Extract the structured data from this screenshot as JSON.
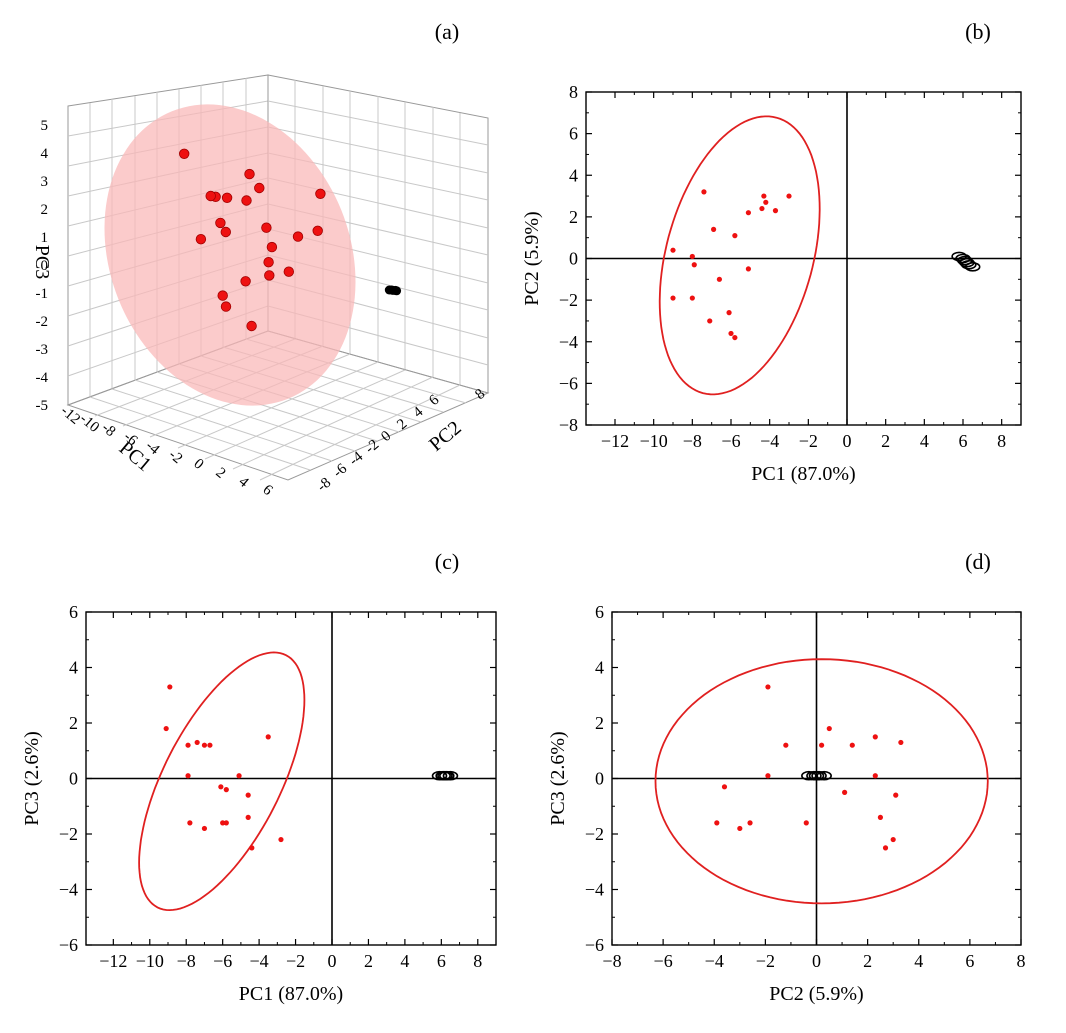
{
  "colors": {
    "group1_points": "#ee1111",
    "group1_ellipse": "#e02020",
    "group1_fill": "#f9b7b7",
    "group2_points": "#000000",
    "axis": "#000000",
    "grid3d": "#c8c8c8"
  },
  "chart_data": [
    {
      "id": "a",
      "panel_label": "(a)",
      "type": "scatter",
      "is3d": true,
      "xlabel": "PC1",
      "ylabel": "PC2",
      "zlabel": "PC3",
      "x_ticks": [
        "-12",
        "-10",
        "-8",
        "-6",
        "-4",
        "-2",
        "0",
        "2",
        "4",
        "6"
      ],
      "y_ticks": [
        "-8",
        "-6",
        "-4",
        "-2",
        "0",
        "2",
        "4",
        "6",
        "8"
      ],
      "z_ticks": [
        "-5",
        "-4",
        "-3",
        "-2",
        "-1",
        "0",
        "1",
        "2",
        "3",
        "4",
        "5"
      ],
      "grid": true,
      "series": [
        {
          "marker_color": "#ee1111",
          "confidence_ellipse": true,
          "points": [
            [
              -7.4,
              3.2,
              3.3
            ],
            [
              -6.6,
              -1.0,
              1.2
            ],
            [
              -8.0,
              0.1,
              1.3
            ],
            [
              -7.5,
              -2.9,
              1.2
            ],
            [
              -4.3,
              2.8,
              2.2
            ],
            [
              -4.0,
              1.3,
              2.8
            ],
            [
              -7.2,
              0.5,
              0.6
            ],
            [
              -6.4,
              -2.4,
              0.1
            ],
            [
              -3.6,
              -0.1,
              0.2
            ],
            [
              -2.5,
              -2.9,
              1.7
            ],
            [
              -1.8,
              -2.0,
              0.7
            ],
            [
              -8.3,
              0.2,
              1.3
            ],
            [
              -8.9,
              0.4,
              -0.2
            ],
            [
              -5.9,
              -3.7,
              -1.5
            ],
            [
              -5.1,
              -1.3,
              -0.7
            ],
            [
              -3.0,
              -1.6,
              0.4
            ],
            [
              -3.2,
              0.5,
              -0.6
            ],
            [
              -8.0,
              -2.3,
              -1.9
            ],
            [
              -6.3,
              1.2,
              -1.6
            ],
            [
              -4.9,
              2.3,
              -1.6
            ],
            [
              -2.6,
              2.5,
              -1.9
            ],
            [
              -4.2,
              3.0,
              1.1
            ]
          ]
        },
        {
          "marker_color": "#000000",
          "confidence_ellipse": false,
          "points": [
            [
              6.0,
              -0.1,
              0.1
            ],
            [
              6.1,
              -0.2,
              0.1
            ],
            [
              6.2,
              -0.2,
              0.1
            ],
            [
              6.3,
              -0.3,
              0.1
            ],
            [
              6.4,
              -0.3,
              0.1
            ]
          ]
        }
      ]
    },
    {
      "id": "b",
      "panel_label": "(b)",
      "type": "scatter",
      "xlabel": "PC1 (87.0%)",
      "ylabel": "PC2 (5.9%)",
      "xlim": [
        -13.5,
        9
      ],
      "ylim": [
        -8,
        8
      ],
      "x_ticks": [
        -12,
        -10,
        -8,
        -6,
        -4,
        -2,
        0,
        2,
        4,
        6,
        8
      ],
      "y_ticks": [
        -8,
        -6,
        -4,
        -2,
        0,
        2,
        4,
        6,
        8
      ],
      "grid": false,
      "series": [
        {
          "marker_color": "#ee1111",
          "points": [
            [
              -7.4,
              3.2
            ],
            [
              -4.3,
              3.0
            ],
            [
              -4.2,
              2.7
            ],
            [
              -4.4,
              2.4
            ],
            [
              -3.0,
              3.0
            ],
            [
              -3.7,
              2.3
            ],
            [
              -5.1,
              2.2
            ],
            [
              -6.9,
              1.4
            ],
            [
              -5.8,
              1.1
            ],
            [
              -9.0,
              0.4
            ],
            [
              -8.0,
              0.1
            ],
            [
              -7.9,
              -0.3
            ],
            [
              -5.1,
              -0.5
            ],
            [
              -6.6,
              -1.0
            ],
            [
              -9.0,
              -1.9
            ],
            [
              -8.0,
              -1.9
            ],
            [
              -6.1,
              -2.6
            ],
            [
              -7.1,
              -3.0
            ],
            [
              -6.0,
              -3.6
            ],
            [
              -5.8,
              -3.8
            ]
          ]
        },
        {
          "marker_color": "#000000",
          "points": [
            [
              5.8,
              0.1
            ],
            [
              6.0,
              0.0
            ],
            [
              6.1,
              -0.1
            ],
            [
              6.2,
              -0.2
            ],
            [
              6.3,
              -0.3
            ],
            [
              6.5,
              -0.4
            ]
          ]
        }
      ],
      "ellipse": {
        "center": [
          -5.55,
          0.15
        ],
        "radii": [
          3.8,
          6.85
        ],
        "angle_deg": 15
      }
    },
    {
      "id": "c",
      "panel_label": "(c)",
      "type": "scatter",
      "xlabel": "PC1 (87.0%)",
      "ylabel": "PC3 (2.6%)",
      "xlim": [
        -13.5,
        9
      ],
      "ylim": [
        -6,
        6
      ],
      "x_ticks": [
        -12,
        -10,
        -8,
        -6,
        -4,
        -2,
        0,
        2,
        4,
        6,
        8
      ],
      "y_ticks": [
        -6,
        -4,
        -2,
        0,
        2,
        4,
        6
      ],
      "grid": false,
      "series": [
        {
          "marker_color": "#ee1111",
          "points": [
            [
              -8.9,
              3.3
            ],
            [
              -9.1,
              1.8
            ],
            [
              -7.9,
              1.2
            ],
            [
              -7.4,
              1.3
            ],
            [
              -7.0,
              1.2
            ],
            [
              -6.7,
              1.2
            ],
            [
              -3.5,
              1.5
            ],
            [
              -7.9,
              0.1
            ],
            [
              -5.1,
              0.1
            ],
            [
              -6.1,
              -0.3
            ],
            [
              -5.8,
              -0.4
            ],
            [
              -4.6,
              -0.6
            ],
            [
              -7.8,
              -1.6
            ],
            [
              -6.0,
              -1.6
            ],
            [
              -5.8,
              -1.6
            ],
            [
              -7.0,
              -1.8
            ],
            [
              -4.6,
              -1.4
            ],
            [
              -2.8,
              -2.2
            ],
            [
              -4.4,
              -2.5
            ]
          ]
        },
        {
          "marker_color": "#000000",
          "points": [
            [
              5.9,
              0.1
            ],
            [
              6.1,
              0.1
            ],
            [
              6.2,
              0.1
            ],
            [
              6.3,
              0.1
            ],
            [
              6.5,
              0.1
            ]
          ]
        }
      ],
      "ellipse": {
        "center": [
          -6.05,
          -0.1
        ],
        "radii": [
          3.2,
          5.1
        ],
        "angle_deg": 27
      }
    },
    {
      "id": "d",
      "panel_label": "(d)",
      "type": "scatter",
      "xlabel": "PC2 (5.9%)",
      "ylabel": "PC3 (2.6%)",
      "xlim": [
        -8,
        8
      ],
      "ylim": [
        -6,
        6
      ],
      "x_ticks": [
        -8,
        -6,
        -4,
        -2,
        0,
        2,
        4,
        6,
        8
      ],
      "y_ticks": [
        -6,
        -4,
        -2,
        0,
        2,
        4,
        6
      ],
      "grid": false,
      "series": [
        {
          "marker_color": "#ee1111",
          "points": [
            [
              -1.9,
              3.3
            ],
            [
              0.5,
              1.8
            ],
            [
              -1.2,
              1.2
            ],
            [
              0.2,
              1.2
            ],
            [
              1.4,
              1.2
            ],
            [
              2.3,
              1.5
            ],
            [
              3.3,
              1.3
            ],
            [
              -1.9,
              0.1
            ],
            [
              2.3,
              0.1
            ],
            [
              -3.6,
              -0.3
            ],
            [
              1.1,
              -0.5
            ],
            [
              3.1,
              -0.6
            ],
            [
              -3.9,
              -1.6
            ],
            [
              -2.6,
              -1.6
            ],
            [
              -0.4,
              -1.6
            ],
            [
              -3.0,
              -1.8
            ],
            [
              2.5,
              -1.4
            ],
            [
              3.0,
              -2.2
            ],
            [
              2.7,
              -2.5
            ]
          ]
        },
        {
          "marker_color": "#000000",
          "points": [
            [
              -0.3,
              0.1
            ],
            [
              -0.1,
              0.1
            ],
            [
              0.0,
              0.1
            ],
            [
              0.1,
              0.1
            ],
            [
              0.3,
              0.1
            ]
          ]
        }
      ],
      "ellipse": {
        "center": [
          0.2,
          -0.1
        ],
        "radii": [
          6.5,
          4.4
        ],
        "angle_deg": 0
      }
    }
  ]
}
